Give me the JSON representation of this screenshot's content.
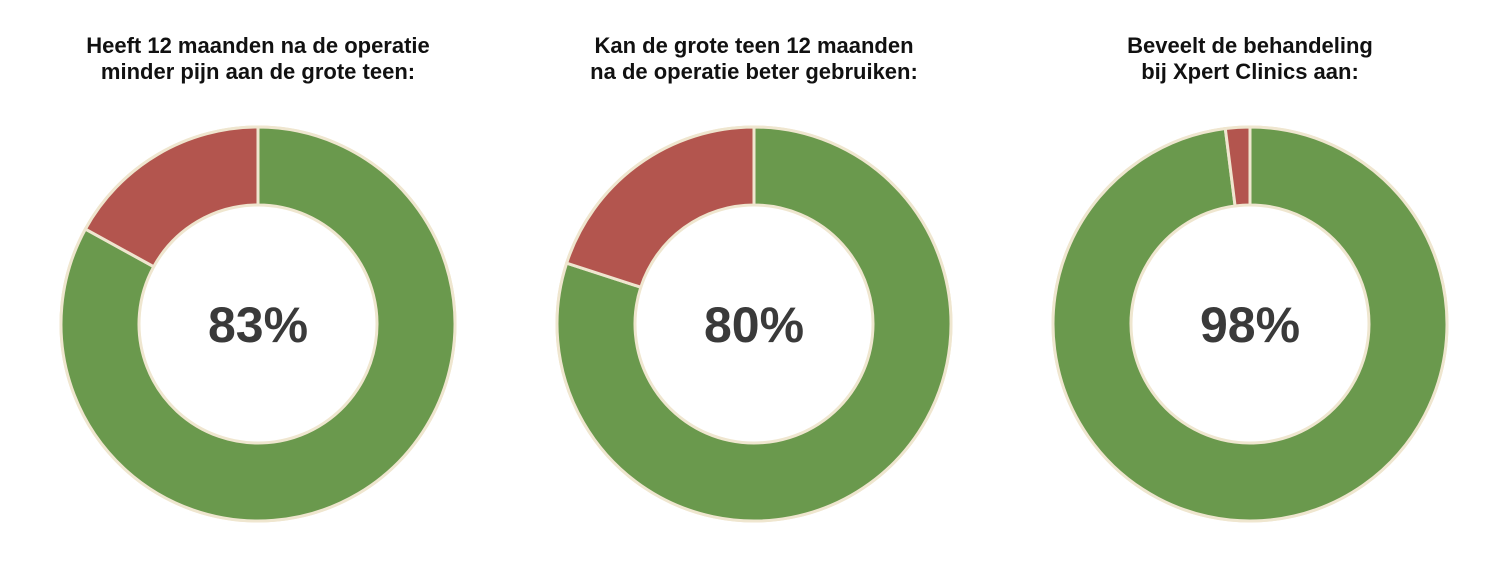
{
  "colors": {
    "positive": "#6a994d",
    "negative": "#b3554e",
    "stroke": "#efe6cf",
    "center_text": "#3a3a3a"
  },
  "chart_data": [
    {
      "type": "pie",
      "title": "Heeft 12 maanden na de operatie\nminder pijn aan de grote teen:",
      "center_label": "83%",
      "slices": [
        {
          "value": 83
        },
        {
          "value": 17
        }
      ]
    },
    {
      "type": "pie",
      "title": "Kan de grote teen 12 maanden\nna de operatie beter gebruiken:",
      "center_label": "80%",
      "slices": [
        {
          "value": 80
        },
        {
          "value": 20
        }
      ]
    },
    {
      "type": "pie",
      "title": "Beveelt de behandeling\nbij Xpert Clinics aan:",
      "center_label": "98%",
      "slices": [
        {
          "value": 98
        },
        {
          "value": 2
        }
      ]
    }
  ]
}
